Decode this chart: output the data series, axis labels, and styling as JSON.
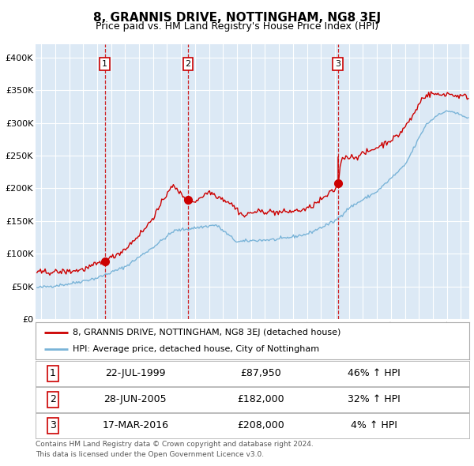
{
  "title": "8, GRANNIS DRIVE, NOTTINGHAM, NG8 3EJ",
  "subtitle": "Price paid vs. HM Land Registry's House Price Index (HPI)",
  "bg_color": "#dce9f5",
  "hpi_line_color": "#7ab4d8",
  "price_line_color": "#cc0000",
  "sale_marker_color": "#cc0000",
  "dashed_line_color": "#cc0000",
  "ylim": [
    0,
    420000
  ],
  "yticks": [
    0,
    50000,
    100000,
    150000,
    200000,
    250000,
    300000,
    350000,
    400000
  ],
  "ytick_labels": [
    "£0",
    "£50K",
    "£100K",
    "£150K",
    "£200K",
    "£250K",
    "£300K",
    "£350K",
    "£400K"
  ],
  "xlim_start": 1994.6,
  "xlim_end": 2025.6,
  "sales": [
    {
      "num": 1,
      "date_label": "22-JUL-1999",
      "date_x": 1999.55,
      "price": 87950,
      "pct": "46%",
      "dir": "↑"
    },
    {
      "num": 2,
      "date_label": "28-JUN-2005",
      "date_x": 2005.49,
      "price": 182000,
      "pct": "32%",
      "dir": "↑"
    },
    {
      "num": 3,
      "date_label": "17-MAR-2016",
      "date_x": 2016.21,
      "price": 208000,
      "pct": "4%",
      "dir": "↑"
    }
  ],
  "legend_line1": "8, GRANNIS DRIVE, NOTTINGHAM, NG8 3EJ (detached house)",
  "legend_line2": "HPI: Average price, detached house, City of Nottingham",
  "footer1": "Contains HM Land Registry data © Crown copyright and database right 2024.",
  "footer2": "This data is licensed under the Open Government Licence v3.0."
}
